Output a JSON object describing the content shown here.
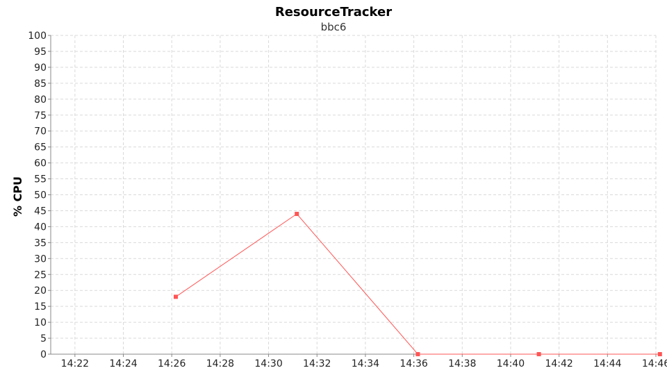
{
  "chart_data": {
    "type": "line",
    "title": "ResourceTracker",
    "subtitle": "bbc6",
    "xlabel": "",
    "ylabel": "% CPU",
    "xlim": [
      "14:21",
      "14:46"
    ],
    "ylim": [
      0,
      100
    ],
    "x_ticks": [
      "14:22",
      "14:24",
      "14:26",
      "14:28",
      "14:30",
      "14:32",
      "14:34",
      "14:36",
      "14:38",
      "14:40",
      "14:42",
      "14:44",
      "14:46"
    ],
    "y_ticks": [
      0,
      5,
      10,
      15,
      20,
      25,
      30,
      35,
      40,
      45,
      50,
      55,
      60,
      65,
      70,
      75,
      80,
      85,
      90,
      95,
      100
    ],
    "grid": true,
    "series": [
      {
        "color": "#ff5555",
        "points": [
          {
            "x": "14:26:10",
            "y": 18
          },
          {
            "x": "14:31:10",
            "y": 44
          },
          {
            "x": "14:36:10",
            "y": 0
          },
          {
            "x": "14:41:10",
            "y": 0
          },
          {
            "x": "14:46:10",
            "y": 0
          }
        ]
      }
    ]
  }
}
